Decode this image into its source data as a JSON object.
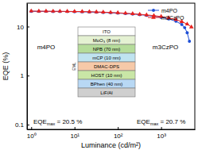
{
  "chart_data": {
    "type": "line",
    "x_label": "Luminance (cd/m²)",
    "y_label": "EQE (%)",
    "log": true,
    "legend": "upper right",
    "xlim": [
      0.8,
      6000
    ],
    "ylim": [
      0.08,
      30
    ],
    "xticks": [
      {
        "value": 1,
        "label": "10⁰"
      },
      {
        "value": 10,
        "label": "10¹"
      },
      {
        "value": 100,
        "label": "10²"
      },
      {
        "value": 1000,
        "label": "10³"
      }
    ],
    "yticks": [
      0.1,
      1,
      10
    ],
    "series": [
      {
        "name": "m4PO",
        "color": "#1f4fd6",
        "marker": "circle",
        "line_style": "solid",
        "x": [
          1,
          1.5,
          2.2,
          3.2,
          4.6,
          6.8,
          10,
          15,
          22,
          32,
          46,
          68,
          100,
          150,
          220,
          320,
          460,
          680,
          1000,
          1500,
          2200,
          3000,
          3500,
          4000,
          4500
        ],
        "values": [
          20.5,
          20.4,
          20.4,
          20.3,
          20.3,
          20.2,
          20.1,
          20,
          19.8,
          19.6,
          19.4,
          19.1,
          18.8,
          18.4,
          18,
          17.5,
          16.9,
          16.2,
          15.4,
          14.3,
          12.8,
          11,
          9.5,
          7.5,
          5
        ]
      },
      {
        "name": "m3CzPO",
        "color": "#e8211e",
        "marker": "triangle",
        "line_style": "solid",
        "x": [
          1,
          1.5,
          2.2,
          3.2,
          4.6,
          6.8,
          10,
          15,
          22,
          32,
          46,
          68,
          100,
          150,
          220,
          320,
          460,
          680,
          1000,
          1500,
          2200,
          3000,
          4000,
          5000
        ],
        "values": [
          20.7,
          20.6,
          20.6,
          20.5,
          20.5,
          20.4,
          20.3,
          20.2,
          20.1,
          19.9,
          19.7,
          19.4,
          19.1,
          18.7,
          18.3,
          17.8,
          17.3,
          16.7,
          16,
          15,
          13.9,
          12.6,
          11.2,
          9.8
        ]
      }
    ],
    "annotations": [
      {
        "text": "m4PO"
      },
      {
        "label": "EQE",
        "subscript": "max",
        "value_text": " = 20.5 %"
      },
      {
        "text": "m3CzPO"
      },
      {
        "label": "EQE",
        "subscript": "max",
        "value_text": " = 20.7 %"
      }
    ],
    "device_stack": {
      "layers": [
        "ITO",
        "MoO₃ (8 nm)",
        "NPB (70 nm)",
        "mCP (10 nm)",
        "DMAC-DPS",
        "HOST (10 nm)",
        "BPhen (40 nm)",
        "LiF/Al"
      ],
      "eml_label": "EML"
    }
  }
}
